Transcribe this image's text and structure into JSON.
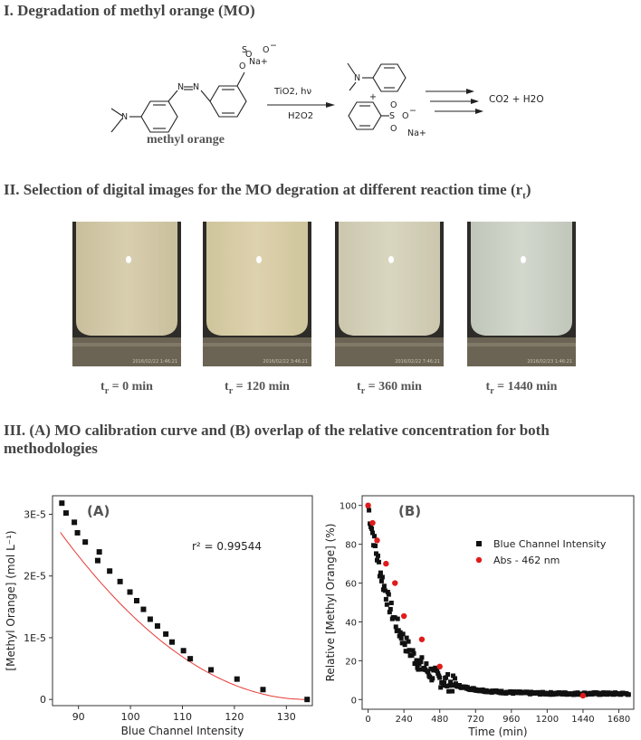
{
  "sections": {
    "s1": "I. Degradation of methyl orange (MO)",
    "s2_main": "II. Selection of digital images for the MO degration at different reaction time (r",
    "s2_sub": "t",
    "s2_end": ")",
    "s3_line1": "III. (A) MO calibration curve and (B) overlap of the relative concentration for both",
    "s3_line2": "methodologies"
  },
  "reaction": {
    "reactant_label": "methyl orange",
    "na_plus": "Na+",
    "so3": "SO3−",
    "cond1": "TiO2, hν",
    "cond2": "H2O2",
    "plus": "+",
    "product_na": "Na+",
    "final": "CO2 + H2O"
  },
  "photos": [
    {
      "caption_t": "t",
      "caption_sub": "r",
      "caption_val": " = 0 min",
      "color_top": "#c9bf9d",
      "color_mid": "#d8cfaf",
      "timestamp": "2016/02/22 1:46:21"
    },
    {
      "caption_t": "t",
      "caption_sub": "r",
      "caption_val": " = 120 min",
      "color_top": "#cfc59c",
      "color_mid": "#ddd2ae",
      "timestamp": "2016/02/22 3:46:21"
    },
    {
      "caption_t": "t",
      "caption_sub": "r",
      "caption_val": " = 360 min",
      "color_top": "#cbc7ae",
      "color_mid": "#d9d6c0",
      "timestamp": "2016/02/22 7:46:21"
    },
    {
      "caption_t": "t",
      "caption_sub": "r",
      "caption_val": " = 1440 min",
      "color_top": "#c1c6bb",
      "color_mid": "#d3d8cd",
      "timestamp": "2016/02/23 1:46:21"
    }
  ],
  "chart_data": [
    {
      "type": "scatter",
      "panel_label": "(A)",
      "annotation": "r² = 0.99544",
      "xlabel": "Blue Channel Intensity",
      "ylabel": "[Methyl Orange] (mol L⁻¹)",
      "xlim": [
        85,
        135
      ],
      "ylim": [
        -1e-06,
        3.3e-05
      ],
      "xticks": [
        90,
        100,
        110,
        120,
        130
      ],
      "yticks": [
        0,
        1e-05,
        2e-05,
        3e-05
      ],
      "ytick_labels": [
        "0",
        "1E-5",
        "2E-5",
        "3E-5"
      ],
      "fit_color": "#e53935",
      "fit_curve": {
        "a": 1.2e-08,
        "b": 134
      },
      "series": [
        {
          "name": "calibration",
          "color": "#111111",
          "x": [
            86.8,
            87.6,
            89.2,
            89.8,
            91.3,
            93.7,
            94.0,
            96.0,
            98.0,
            99.9,
            101.2,
            102.5,
            103.8,
            105.2,
            106.8,
            108.0,
            110.2,
            111.5,
            115.5,
            120.5,
            125.5,
            134.0
          ],
          "y": [
            3.18e-05,
            3.02e-05,
            2.87e-05,
            2.7e-05,
            2.55e-05,
            2.25e-05,
            2.39e-05,
            2.08e-05,
            1.91e-05,
            1.74e-05,
            1.6e-05,
            1.46e-05,
            1.3e-05,
            1.19e-05,
            1.06e-05,
            9.3e-06,
            7.9e-06,
            6.6e-06,
            4.8e-06,
            3.3e-06,
            1.6e-06,
            0.0
          ]
        }
      ]
    },
    {
      "type": "scatter",
      "panel_label": "(B)",
      "xlabel": "Time (min)",
      "ylabel": "Relative [Methyl Orange] (%)",
      "xlim": [
        -40,
        1780
      ],
      "ylim": [
        -5,
        105
      ],
      "xticks": [
        0,
        240,
        480,
        720,
        960,
        1200,
        1440,
        1680
      ],
      "yticks": [
        0,
        20,
        40,
        60,
        80,
        100
      ],
      "legend_position": "top-right",
      "series": [
        {
          "name": "Blue Channel Intensity",
          "color": "#111111",
          "marker": "square"
        },
        {
          "name": "Abs - 462 nm",
          "color": "#e01b1b",
          "marker": "circle",
          "x": [
            0,
            30,
            60,
            120,
            180,
            240,
            360,
            480,
            1440
          ],
          "y": [
            100,
            91,
            82,
            70,
            60,
            43,
            31,
            17,
            2
          ]
        }
      ]
    }
  ]
}
